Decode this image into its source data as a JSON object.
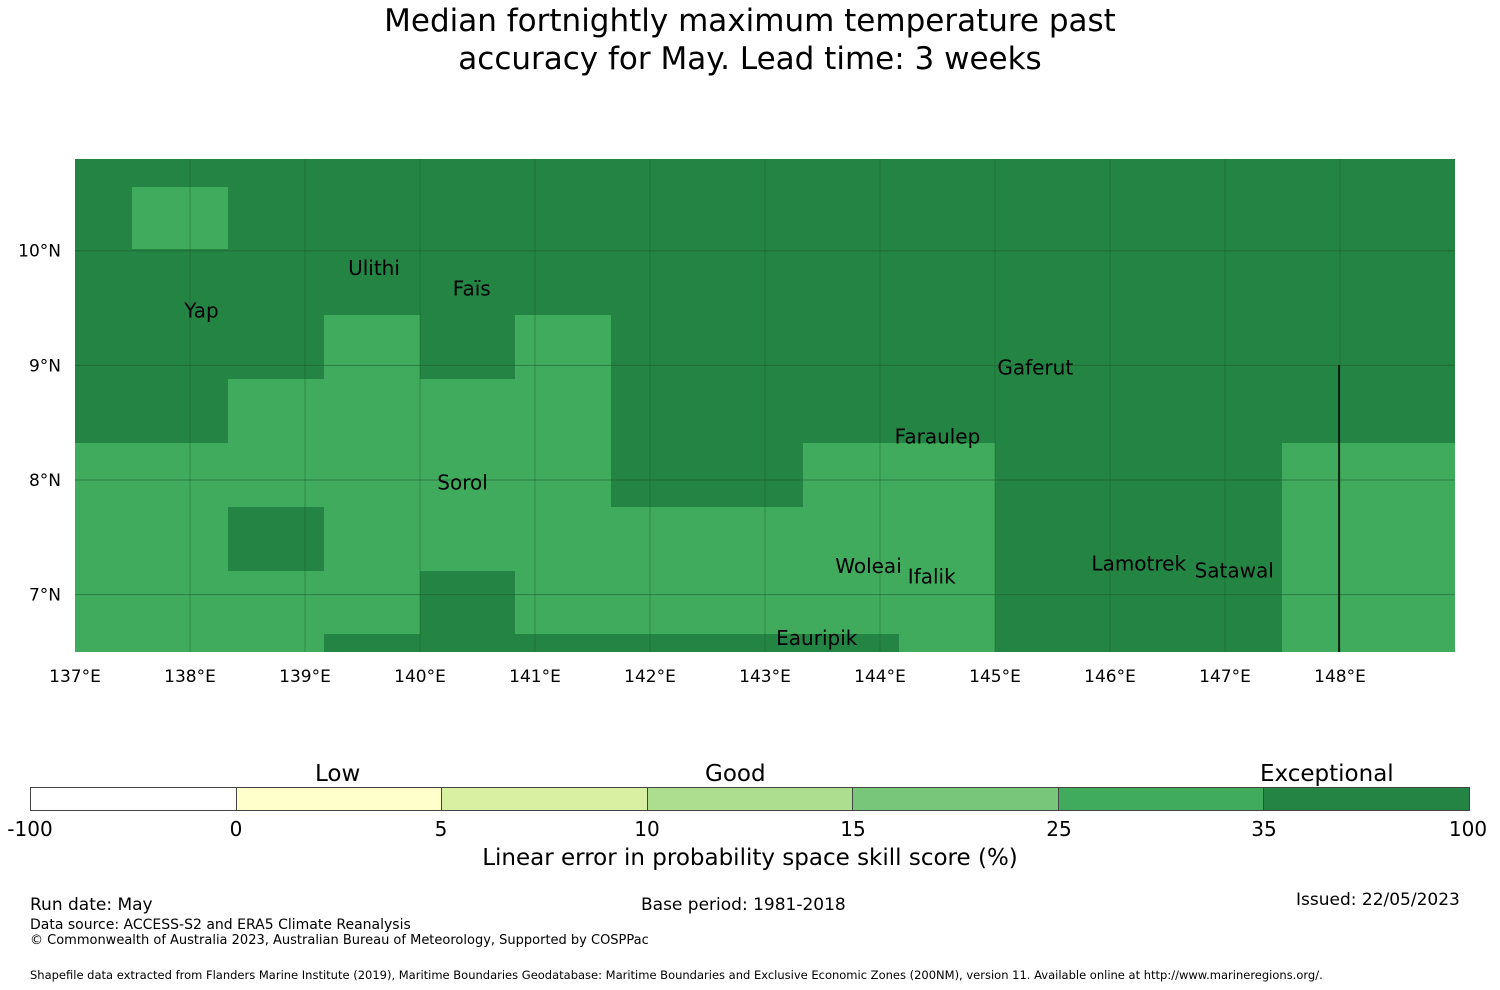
{
  "title": {
    "line1": "Median fortnightly maximum temperature past",
    "line2": "accuracy for May. Lead time: 3 weeks"
  },
  "colors": {
    "dark_green": "#238443",
    "mid_green": "#41ab5d",
    "grid": "#1b5e30",
    "segments": [
      "#ffffff",
      "#ffffcc",
      "#d9f0a3",
      "#addd8e",
      "#78c679",
      "#41ab5d",
      "#238443"
    ]
  },
  "map": {
    "lon_range": [
      137,
      149
    ],
    "lat_range": [
      6.5,
      10.8
    ],
    "x_ticks": [
      "137°E",
      "138°E",
      "139°E",
      "140°E",
      "141°E",
      "142°E",
      "143°E",
      "144°E",
      "145°E",
      "146°E",
      "147°E",
      "148°E"
    ],
    "y_ticks": [
      "10°N",
      "9°N",
      "8°N",
      "7°N"
    ],
    "places": [
      {
        "name": "Yap",
        "lon": 138.1,
        "lat": 9.48
      },
      {
        "name": "Ulithi",
        "lon": 139.6,
        "lat": 9.85
      },
      {
        "name": "Faïs",
        "lon": 140.45,
        "lat": 9.67
      },
      {
        "name": "Gaferut",
        "lon": 145.35,
        "lat": 8.98
      },
      {
        "name": "Faraulep",
        "lon": 144.5,
        "lat": 8.38
      },
      {
        "name": "Sorol",
        "lon": 140.37,
        "lat": 7.98
      },
      {
        "name": "Woleai",
        "lon": 143.9,
        "lat": 7.25
      },
      {
        "name": "Ifalik",
        "lon": 144.45,
        "lat": 7.16
      },
      {
        "name": "Lamotrek",
        "lon": 146.25,
        "lat": 7.27
      },
      {
        "name": "Satawal",
        "lon": 147.08,
        "lat": 7.21
      },
      {
        "name": "Eauripik",
        "lon": 143.45,
        "lat": 6.62
      }
    ]
  },
  "legend": {
    "categories": [
      "Low",
      "Good",
      "Exceptional"
    ],
    "ticks": [
      "-100",
      "0",
      "5",
      "10",
      "15",
      "25",
      "35",
      "100"
    ],
    "label": "Linear error in probability space skill score (%)"
  },
  "footer": {
    "run_date": "Run date: May",
    "base_period": "Base period: 1981-2018",
    "issued": "Issued: 22/05/2023",
    "data_source": "Data source: ACCESS-S2 and ERA5 Climate Reanalysis",
    "copyright": "© Commonwealth of Australia 2023, Australian Bureau of Meteorology, Supported by COSPPac",
    "shapefile": "Shapefile data extracted from Flanders Marine Institute (2019), Maritime Boundaries Geodatabase: Maritime Boundaries and Exclusive Economic Zones (200NM), version 11. Available online at http://www.marineregions.org/."
  }
}
